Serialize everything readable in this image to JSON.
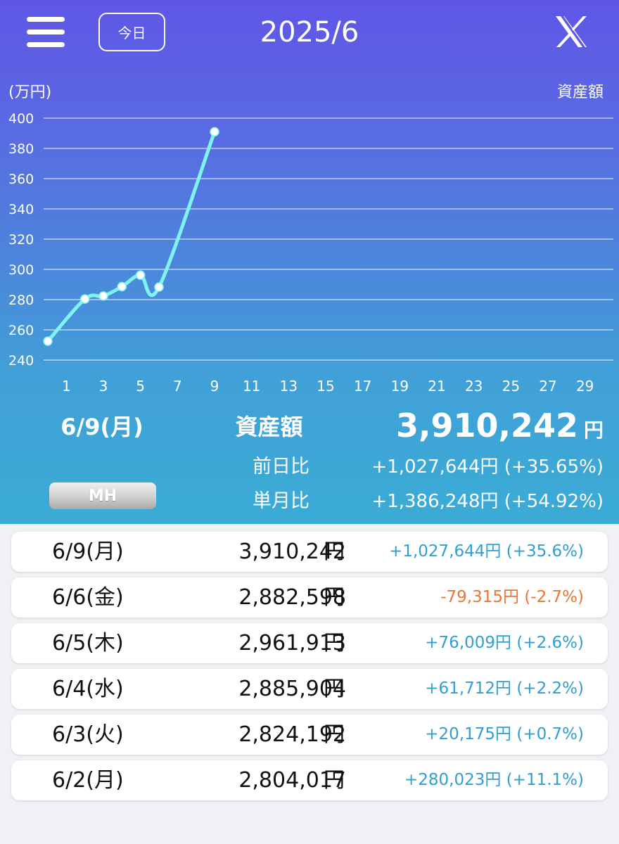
{
  "header": {
    "menu_icon": "hamburger-menu-icon",
    "today_label": "今日",
    "title": "2025/6",
    "share_icon": "x-logo-icon"
  },
  "colors": {
    "line": "#7ff3f0",
    "positive": "#2f9fd4",
    "negative": "#ee7431"
  },
  "chart_data": {
    "type": "line",
    "ylabel": "(万円)",
    "series_label": "資産額",
    "ylim": [
      240,
      400
    ],
    "yticks": [
      "240",
      "260",
      "280",
      "300",
      "320",
      "340",
      "360",
      "380",
      "400"
    ],
    "xlim": [
      0,
      30
    ],
    "xticks": [
      "1",
      "3",
      "5",
      "7",
      "9",
      "11",
      "13",
      "15",
      "17",
      "19",
      "21",
      "23",
      "25",
      "27",
      "29"
    ],
    "grid": true,
    "series": [
      {
        "x": [
          0,
          2,
          3,
          4,
          5,
          6,
          9
        ],
        "values": [
          252.5,
          280.4,
          282.4,
          288.6,
          296.2,
          288.3,
          391.0
        ]
      }
    ]
  },
  "summary": {
    "date": "6/9(月)",
    "asset_label": "資産額",
    "asset_value": "3,910,242",
    "asset_unit": "円",
    "prev_day_label": "前日比",
    "prev_day_value": "+1,027,644円 (+35.65%)",
    "month_label": "単月比",
    "month_value": "+1,386,248円 (+54.92%)",
    "mh_label": "MH"
  },
  "rows": [
    {
      "date": "6/9(月)",
      "amount": "3,910,242",
      "unit": "円",
      "diff": "+1,027,644円 (+35.6%)",
      "sign": "positive"
    },
    {
      "date": "6/6(金)",
      "amount": "2,882,598",
      "unit": "円",
      "diff": "-79,315円 (-2.7%)",
      "sign": "negative"
    },
    {
      "date": "6/5(木)",
      "amount": "2,961,913",
      "unit": "円",
      "diff": "+76,009円 (+2.6%)",
      "sign": "positive"
    },
    {
      "date": "6/4(水)",
      "amount": "2,885,904",
      "unit": "円",
      "diff": "+61,712円 (+2.2%)",
      "sign": "positive"
    },
    {
      "date": "6/3(火)",
      "amount": "2,824,192",
      "unit": "円",
      "diff": "+20,175円 (+0.7%)",
      "sign": "positive"
    },
    {
      "date": "6/2(月)",
      "amount": "2,804,017",
      "unit": "円",
      "diff": "+280,023円 (+11.1%)",
      "sign": "positive"
    }
  ]
}
